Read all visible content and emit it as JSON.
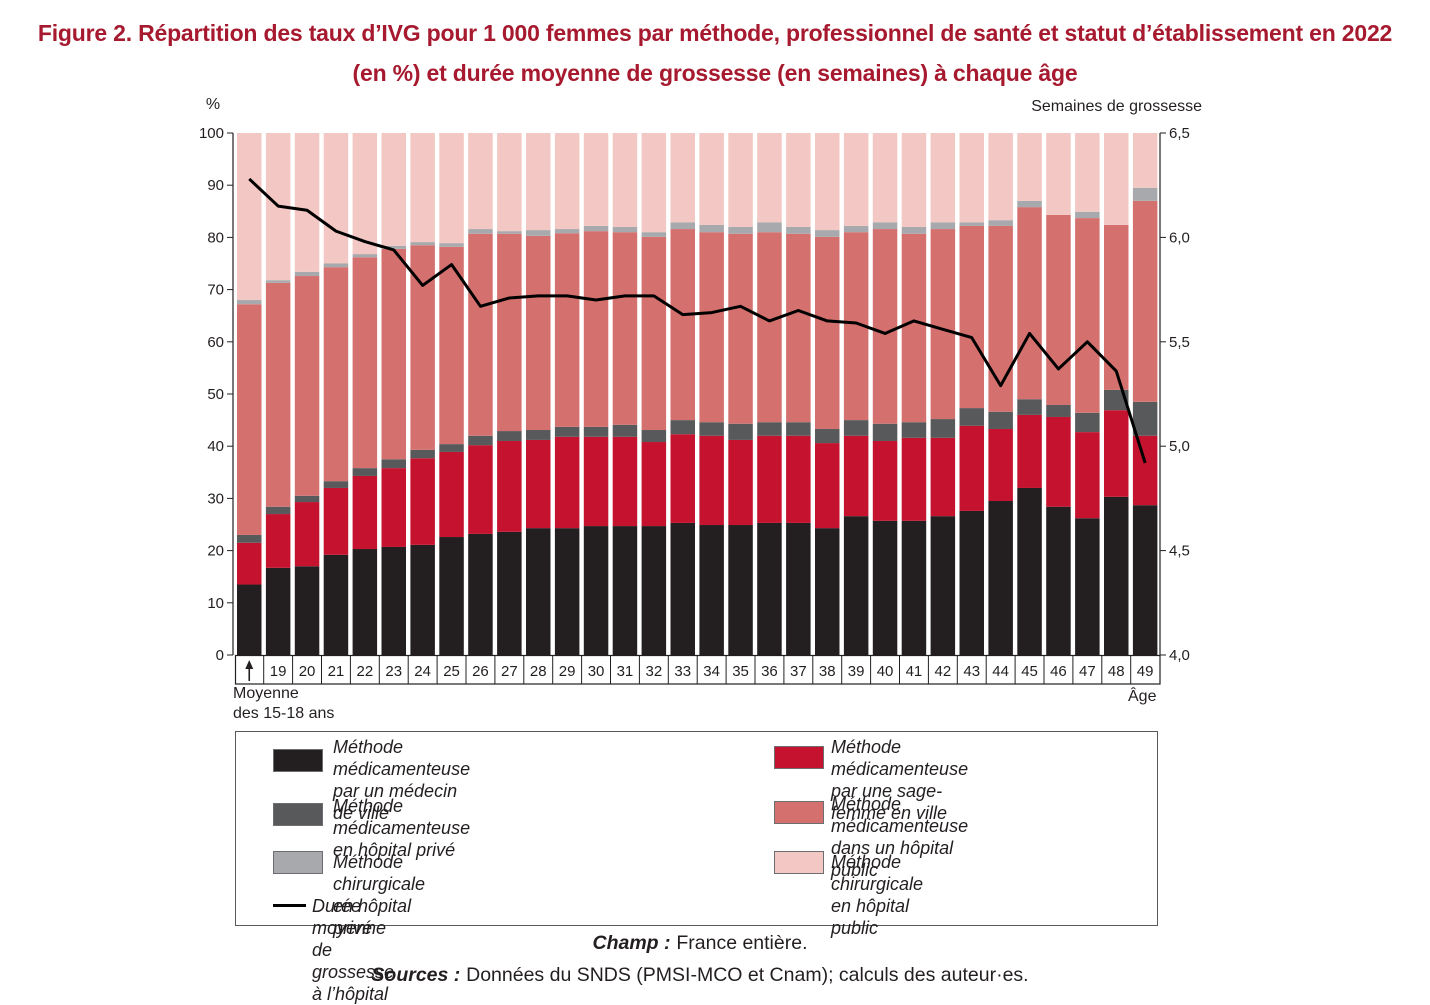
{
  "chart_data": {
    "type": "bar",
    "stacked": true,
    "title": "Figure 2. Répartition des taux d’IVG pour 1 000 femmes par méthode, professionnel de santé et statut d’établissement en 2022\n(en %) et durée moyenne de grossesse (en semaines) à chaque âge",
    "categories": [
      "Moyenne\ndes 15-18 ans",
      "19",
      "20",
      "21",
      "22",
      "23",
      "24",
      "25",
      "26",
      "27",
      "28",
      "29",
      "30",
      "31",
      "32",
      "33",
      "34",
      "35",
      "36",
      "37",
      "38",
      "39",
      "40",
      "41",
      "42",
      "43",
      "44",
      "45",
      "46",
      "47",
      "48",
      "49"
    ],
    "xlabel": "Âge",
    "y_left": {
      "label": "%",
      "min": 0,
      "max": 100,
      "ticks": [
        "0",
        "10",
        "20",
        "30",
        "40",
        "50",
        "60",
        "70",
        "80",
        "90",
        "100"
      ]
    },
    "y_right": {
      "label": "Semaines de grossesse",
      "min": 4.0,
      "max": 6.5,
      "ticks": [
        "4,0",
        "4,5",
        "5,0",
        "5,5",
        "6,0",
        "6,5"
      ]
    },
    "legend_position": "bottom",
    "series": [
      {
        "name": "Méthode médicamenteuse\npar un médecin de ville",
        "type": "bar",
        "axis": "left",
        "color": "#231f20",
        "values": [
          13.5,
          16.7,
          17.0,
          19.2,
          20.3,
          20.7,
          21.1,
          22.6,
          23.2,
          23.6,
          24.3,
          24.3,
          24.7,
          24.7,
          24.7,
          25.3,
          24.9,
          24.9,
          25.3,
          25.3,
          24.3,
          26.6,
          25.7,
          25.7,
          26.6,
          27.6,
          29.5,
          32.0,
          28.4,
          26.2,
          30.3,
          28.7
        ]
      },
      {
        "name": "Méthode médicamenteuse\npar une sage-femme en ville",
        "type": "bar",
        "axis": "left",
        "color": "#c4122f",
        "values": [
          8.0,
          10.3,
          12.3,
          12.8,
          14.0,
          15.1,
          16.6,
          16.3,
          17.0,
          17.4,
          16.9,
          17.5,
          17.1,
          17.1,
          16.1,
          17.0,
          17.1,
          16.3,
          16.7,
          16.7,
          16.3,
          15.4,
          15.3,
          15.9,
          15.0,
          16.3,
          13.8,
          14.0,
          17.2,
          16.5,
          16.6,
          13.3
        ]
      },
      {
        "name": "Méthode médicamenteuse\nen hôpital privé",
        "type": "bar",
        "axis": "left",
        "color": "#58595b",
        "values": [
          1.5,
          1.4,
          1.2,
          1.3,
          1.5,
          1.7,
          1.6,
          1.5,
          1.8,
          1.9,
          1.9,
          1.9,
          1.9,
          2.3,
          2.3,
          2.7,
          2.6,
          3.1,
          2.6,
          2.6,
          2.7,
          3.0,
          3.3,
          3.0,
          3.6,
          3.4,
          3.3,
          3.0,
          2.3,
          3.7,
          3.9,
          6.5
        ]
      },
      {
        "name": "Méthode médicamenteuse\ndans un hôpital public",
        "type": "bar",
        "axis": "left",
        "color": "#d4716f",
        "values": [
          44.2,
          42.9,
          42.1,
          41.0,
          40.4,
          40.3,
          39.2,
          37.8,
          38.7,
          37.8,
          37.2,
          37.1,
          37.5,
          36.9,
          37.0,
          36.6,
          36.4,
          36.4,
          36.4,
          36.1,
          36.8,
          36.0,
          37.3,
          36.1,
          36.4,
          34.9,
          35.6,
          36.8,
          36.4,
          37.3,
          31.6,
          38.5
        ]
      },
      {
        "name": "Méthode chirurgicale en hôpital privé",
        "type": "bar",
        "axis": "left",
        "color": "#a7a9ac",
        "values": [
          0.8,
          0.5,
          0.8,
          0.7,
          0.6,
          0.6,
          0.6,
          0.7,
          0.9,
          0.5,
          1.1,
          0.8,
          1.0,
          1.0,
          0.9,
          1.3,
          1.4,
          1.3,
          1.9,
          1.3,
          1.3,
          1.2,
          1.3,
          1.3,
          1.3,
          0.7,
          1.1,
          1.2,
          0.0,
          1.2,
          0.0,
          2.5
        ]
      },
      {
        "name": "Méthode chirurgicale en hôpital public",
        "type": "bar",
        "axis": "left",
        "color": "#f3c7c3",
        "values": [
          32.0,
          28.2,
          26.6,
          25.0,
          23.2,
          21.6,
          20.9,
          21.1,
          18.4,
          18.8,
          18.6,
          18.4,
          17.8,
          18.0,
          19.0,
          17.1,
          17.6,
          18.0,
          17.1,
          18.0,
          18.6,
          17.8,
          17.1,
          18.0,
          17.1,
          17.1,
          16.7,
          13.0,
          15.7,
          15.1,
          17.6,
          10.5
        ]
      },
      {
        "name": "Durée moyenne de grossesse à l’hôpital",
        "type": "line",
        "axis": "right",
        "color": "#000000",
        "values": [
          6.28,
          6.15,
          6.13,
          6.03,
          5.98,
          5.94,
          5.77,
          5.87,
          5.67,
          5.71,
          5.72,
          5.72,
          5.7,
          5.72,
          5.72,
          5.63,
          5.64,
          5.67,
          5.6,
          5.65,
          5.6,
          5.59,
          5.54,
          5.6,
          5.56,
          5.52,
          5.29,
          5.54,
          5.37,
          5.5,
          5.36,
          4.92
        ]
      }
    ]
  },
  "title_color": "#a6192e",
  "footer": {
    "champ_label": "Champ :",
    "champ_text": "France entière.",
    "sources_label": "Sources :",
    "sources_text": "Données du SNDS (PMSI-MCO et Cnam); calculs des auteur·es."
  }
}
